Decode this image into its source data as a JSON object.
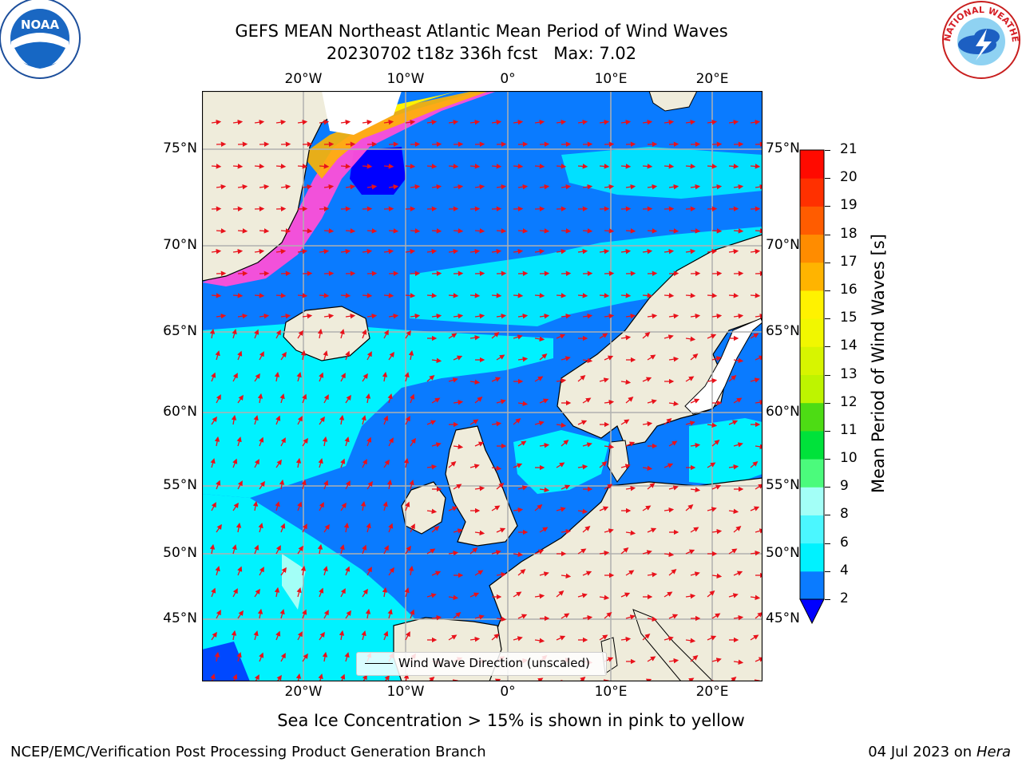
{
  "title": {
    "line1": "GEFS MEAN Northeast Atlantic Mean Period of Wind Waves",
    "line2": "20230702 t18z 336h fcst   Max: 7.02"
  },
  "map": {
    "lon_labels": [
      "20°W",
      "10°W",
      "0°",
      "10°E",
      "20°E"
    ],
    "lat_labels": [
      "75°N",
      "70°N",
      "65°N",
      "60°N",
      "55°N",
      "50°N",
      "45°N"
    ],
    "legend_label": "Wind Wave Direction (unscaled)",
    "colors": {
      "land": "#efecdb",
      "ice_free_land": "#ffffff",
      "gridline": "#b0b0b0",
      "arrow": "#e8121b"
    }
  },
  "colorbar": {
    "label": "Mean Period of Wind Waves [s]",
    "ticks": [
      "21",
      "20",
      "19",
      "18",
      "17",
      "16",
      "15",
      "14",
      "13",
      "12",
      "11",
      "10",
      "9",
      "8",
      "6",
      "4",
      "2"
    ],
    "bands": [
      {
        "from": 2,
        "to": 4,
        "color": "#0a7bff"
      },
      {
        "from": 4,
        "to": 6,
        "color": "#00f2ff"
      },
      {
        "from": 6,
        "to": 8,
        "color": "#4bf7ff"
      },
      {
        "from": 8,
        "to": 9,
        "color": "#a3fff7"
      },
      {
        "from": 9,
        "to": 10,
        "color": "#4bfb7c"
      },
      {
        "from": 10,
        "to": 11,
        "color": "#00e23a"
      },
      {
        "from": 11,
        "to": 12,
        "color": "#4ddc14"
      },
      {
        "from": 12,
        "to": 13,
        "color": "#bef400"
      },
      {
        "from": 13,
        "to": 14,
        "color": "#d7f500"
      },
      {
        "from": 14,
        "to": 15,
        "color": "#f1f700"
      },
      {
        "from": 15,
        "to": 16,
        "color": "#fff200"
      },
      {
        "from": 16,
        "to": 17,
        "color": "#ffb400"
      },
      {
        "from": 17,
        "to": 18,
        "color": "#ff8c00"
      },
      {
        "from": 18,
        "to": 19,
        "color": "#ff5c00"
      },
      {
        "from": 19,
        "to": 20,
        "color": "#ff3000"
      },
      {
        "from": 20,
        "to": 21,
        "color": "#ff0a00"
      }
    ],
    "under_color": "#0000ff"
  },
  "note": "Sea Ice Concentration > 15% is shown in pink to yellow",
  "footer": {
    "left": "NCEP/EMC/Verification Post Processing Product Generation Branch",
    "right_prefix": "04 Jul 2023 on ",
    "right_host": "Hera"
  },
  "logos": {
    "left": "NOAA",
    "right": "NATIONAL WEATHER SERVICE"
  }
}
